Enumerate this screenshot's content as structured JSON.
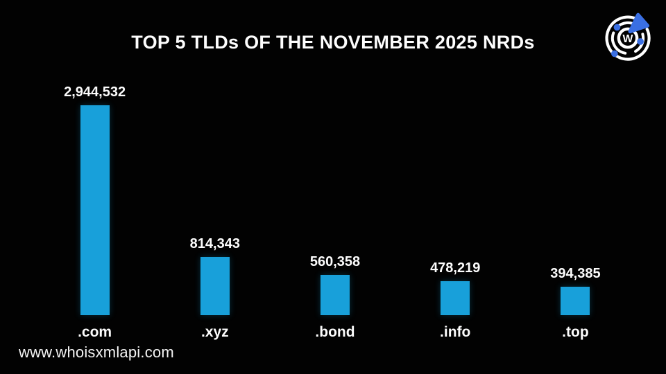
{
  "title": "TOP 5 TLDs OF THE NOVEMBER 2025 NRDs",
  "footer": {
    "website": "www.whoisxmlapi.com"
  },
  "logo": {
    "letter": "W"
  },
  "colors": {
    "background": "#020202",
    "bar": "#18A0DA",
    "text": "#FFFFFF",
    "logo_accent": "#3A6FE3",
    "logo_rings": "#FFFFFF"
  },
  "chart_data": {
    "type": "bar",
    "title": "TOP 5 TLDs OF THE NOVEMBER 2025 NRDs",
    "categories": [
      ".com",
      ".xyz",
      ".bond",
      ".info",
      ".top"
    ],
    "values": [
      2944532,
      814343,
      560358,
      478219,
      394385
    ],
    "value_labels": [
      "2,944,532",
      "814,343",
      "560,358",
      "478,219",
      "394,385"
    ],
    "xlabel": "",
    "ylabel": "",
    "ylim": [
      0,
      3000000
    ],
    "grid": false,
    "legend": null,
    "bar_color": "#18A0DA",
    "background_color": "#020202"
  }
}
